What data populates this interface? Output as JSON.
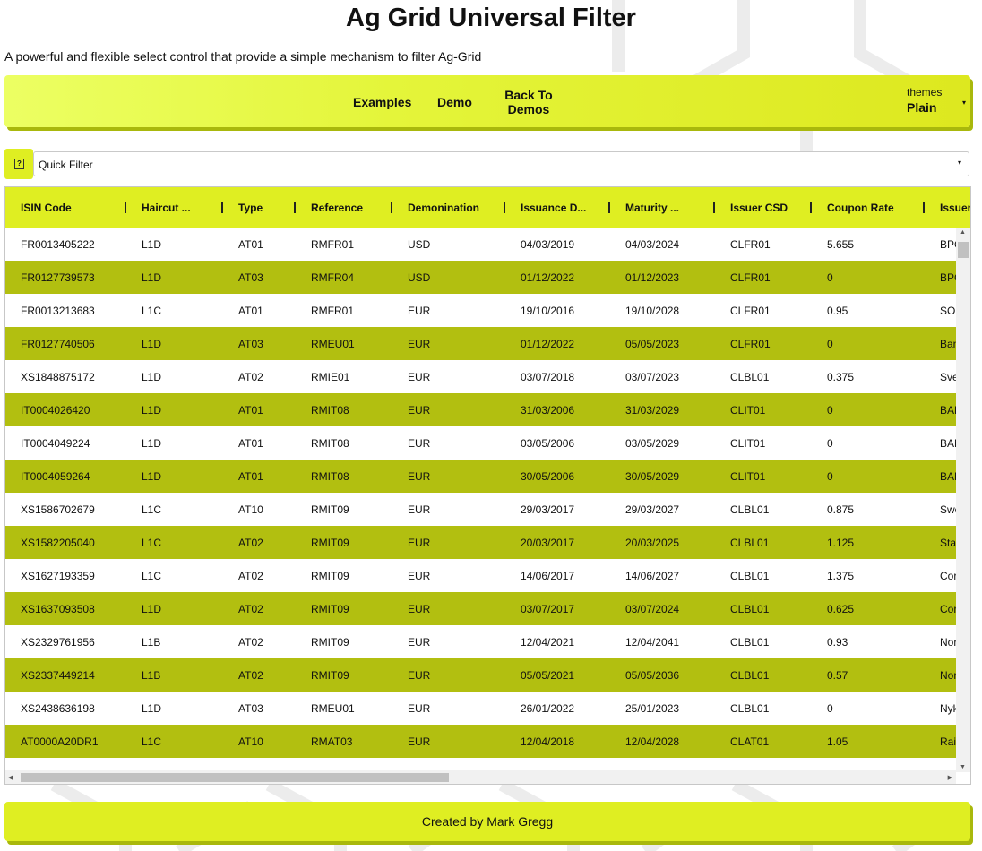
{
  "page": {
    "title": "Ag Grid Universal Filter",
    "subtitle": "A powerful and flexible select control that provide a simple mechanism to filter Ag-Grid"
  },
  "nav": {
    "examples": "Examples",
    "demo": "Demo",
    "back_to_demos": "Back To Demos",
    "themes_label": "themes",
    "themes_value": "Plain",
    "caret": "▾"
  },
  "filter": {
    "help_icon": "question-icon",
    "help_glyph": "?",
    "quick_filter": "Quick Filter",
    "caret": "▾"
  },
  "grid": {
    "columns": [
      "ISIN Code",
      "Haircut ...",
      "Type",
      "Reference",
      "Demonination",
      "Issuance D...",
      "Maturity ...",
      "Issuer CSD",
      "Coupon Rate",
      "Issuer"
    ],
    "rows": [
      [
        "FR0013405222",
        "L1D",
        "AT01",
        "RMFR01",
        "USD",
        "04/03/2019",
        "04/03/2024",
        "CLFR01",
        "5.655",
        "BPC"
      ],
      [
        "FR0127739573",
        "L1D",
        "AT03",
        "RMFR04",
        "USD",
        "01/12/2022",
        "01/12/2023",
        "CLFR01",
        "0",
        "BPC"
      ],
      [
        "FR0013213683",
        "L1C",
        "AT01",
        "RMFR01",
        "EUR",
        "19/10/2016",
        "19/10/2028",
        "CLFR01",
        "0.95",
        "SOC"
      ],
      [
        "FR0127740506",
        "L1D",
        "AT03",
        "RMEU01",
        "EUR",
        "01/12/2022",
        "05/05/2023",
        "CLFR01",
        "0",
        "Ban"
      ],
      [
        "XS1848875172",
        "L1D",
        "AT02",
        "RMIE01",
        "EUR",
        "03/07/2018",
        "03/07/2023",
        "CLBL01",
        "0.375",
        "Sve"
      ],
      [
        "IT0004026420",
        "L1D",
        "AT01",
        "RMIT08",
        "EUR",
        "31/03/2006",
        "31/03/2029",
        "CLIT01",
        "0",
        "BAN"
      ],
      [
        "IT0004049224",
        "L1D",
        "AT01",
        "RMIT08",
        "EUR",
        "03/05/2006",
        "03/05/2029",
        "CLIT01",
        "0",
        "BAN"
      ],
      [
        "IT0004059264",
        "L1D",
        "AT01",
        "RMIT08",
        "EUR",
        "30/05/2006",
        "30/05/2029",
        "CLIT01",
        "0",
        "BAN"
      ],
      [
        "XS1586702679",
        "L1C",
        "AT10",
        "RMIT09",
        "EUR",
        "29/03/2017",
        "29/03/2027",
        "CLBL01",
        "0.875",
        "Swe"
      ],
      [
        "XS1582205040",
        "L1C",
        "AT02",
        "RMIT09",
        "EUR",
        "20/03/2017",
        "20/03/2025",
        "CLBL01",
        "1.125",
        "Stat"
      ],
      [
        "XS1627193359",
        "L1C",
        "AT02",
        "RMIT09",
        "EUR",
        "14/06/2017",
        "14/06/2027",
        "CLBL01",
        "1.375",
        "Cor"
      ],
      [
        "XS1637093508",
        "L1D",
        "AT02",
        "RMIT09",
        "EUR",
        "03/07/2017",
        "03/07/2024",
        "CLBL01",
        "0.625",
        "Cor"
      ],
      [
        "XS2329761956",
        "L1B",
        "AT02",
        "RMIT09",
        "EUR",
        "12/04/2021",
        "12/04/2041",
        "CLBL01",
        "0.93",
        "Nor"
      ],
      [
        "XS2337449214",
        "L1B",
        "AT02",
        "RMIT09",
        "EUR",
        "05/05/2021",
        "05/05/2036",
        "CLBL01",
        "0.57",
        "Nor"
      ],
      [
        "XS2438636198",
        "L1D",
        "AT03",
        "RMEU01",
        "EUR",
        "26/01/2022",
        "25/01/2023",
        "CLBL01",
        "0",
        "Nyk"
      ],
      [
        "AT0000A20DR1",
        "L1C",
        "AT10",
        "RMAT03",
        "EUR",
        "12/04/2018",
        "12/04/2028",
        "CLAT01",
        "1.05",
        "Raif"
      ]
    ],
    "scroll_up": "▲",
    "scroll_down": "▼",
    "scroll_left": "◀",
    "scroll_right": "▶"
  },
  "footer": {
    "text": "Created by Mark Gregg"
  }
}
